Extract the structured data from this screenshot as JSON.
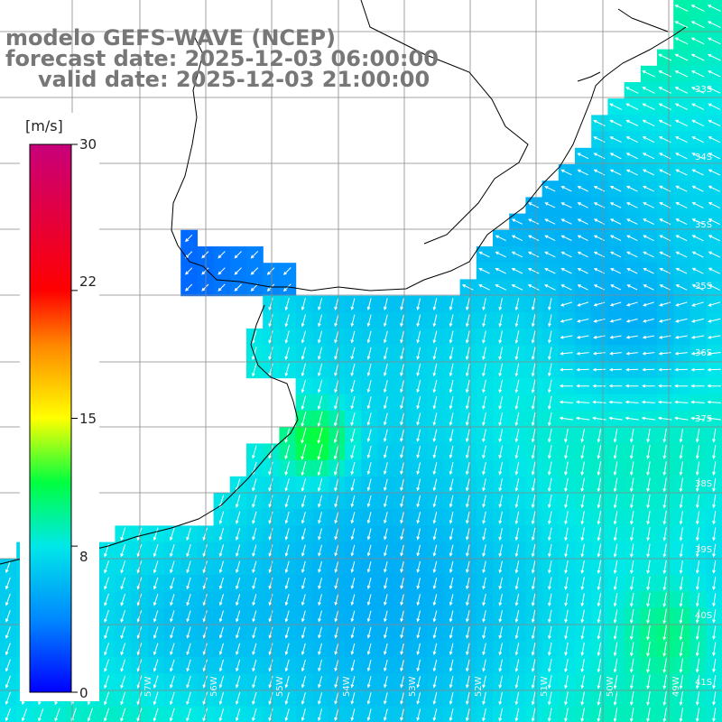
{
  "titles": {
    "line1": "modelo GEFS-WAVE (NCEP)",
    "line2": "forecast date: 2025-12-03 06:00:00",
    "line3": "valid date: 2025-12-03 21:00:00"
  },
  "colorbar": {
    "unit": "[m/s]",
    "min": 0,
    "max": 30,
    "ticks": [
      "30",
      "22",
      "15",
      "8",
      "0"
    ],
    "tick_values": [
      30,
      22,
      15,
      8,
      0
    ],
    "colors": [
      "#0000ff",
      "#0088ff",
      "#00e8e8",
      "#00ff40",
      "#ffff00",
      "#ff8800",
      "#ff0000",
      "#c8007a"
    ]
  },
  "lat_labels": [
    "33S",
    "34S",
    "35S",
    "36S",
    "37S",
    "38S",
    "39S",
    "40S",
    "41S"
  ],
  "lon_labels": [
    "57W",
    "56W",
    "55W",
    "54W",
    "53W",
    "52W",
    "51W",
    "50W",
    "49W"
  ],
  "field_description_colors": {
    "land": "#ffffff",
    "coast": "#000000",
    "grid": "#888888",
    "arrows": "#ffffff"
  }
}
